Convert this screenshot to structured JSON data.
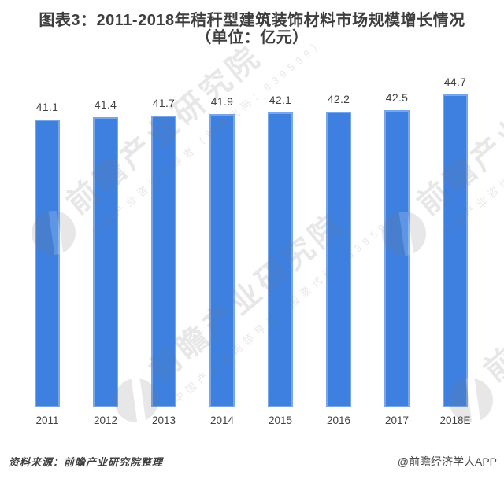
{
  "title": {
    "line1": "图表3：2011-2018年秸秆型建筑装饰材料市场规模增长情况",
    "line2": "（单位：亿元）"
  },
  "chart_data": {
    "type": "bar",
    "title": "图表3：2011-2018年秸秆型建筑装饰材料市场规模增长情况（单位：亿元）",
    "unit": "亿元",
    "categories": [
      "2011",
      "2012",
      "2013",
      "2014",
      "2015",
      "2016",
      "2017",
      "2018E"
    ],
    "values": [
      41.1,
      41.4,
      41.7,
      41.9,
      42.1,
      42.2,
      42.5,
      44.7
    ],
    "xlabel": "",
    "ylabel": "",
    "ylim": [
      0,
      48
    ],
    "grid": false,
    "legend": false,
    "axis_visible": false,
    "bar_color": "#3e80e0",
    "value_label_color": "#404040",
    "value_labels_shown": true
  },
  "watermark": {
    "text": "前瞻产业研究院",
    "subtext": "中国产业咨询领导者（股票代码：839599）"
  },
  "footer": {
    "source": "资料来源：前瞻产业研究院整理",
    "credit": "@前瞻经济学人APP"
  }
}
